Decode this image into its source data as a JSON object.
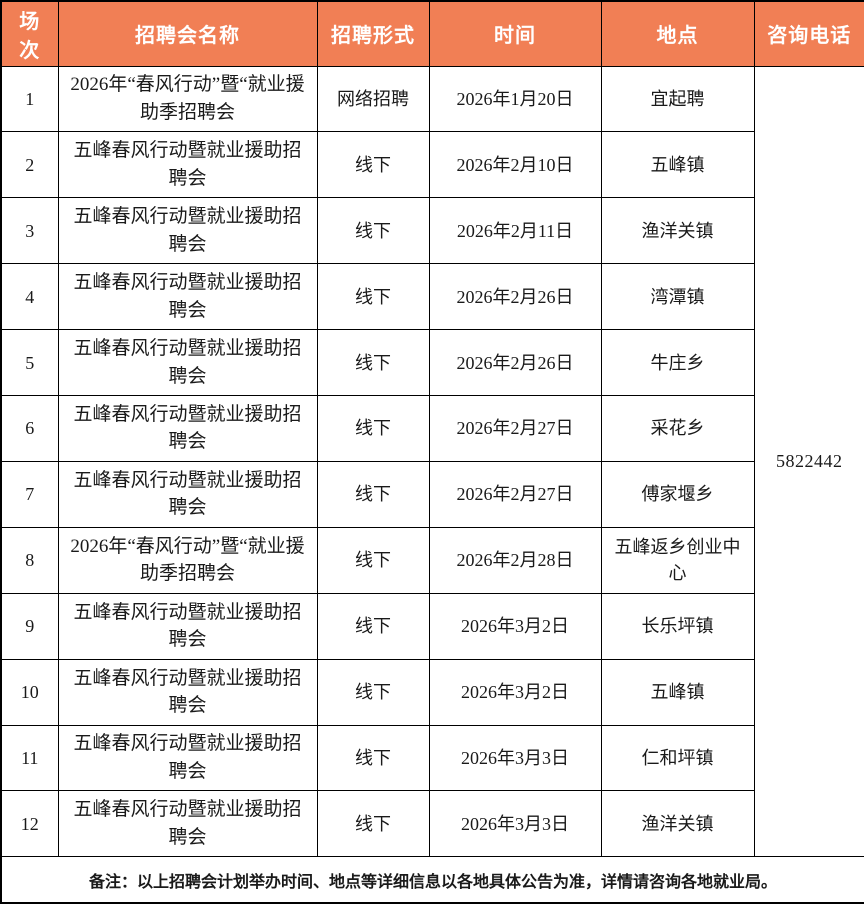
{
  "colors": {
    "accent": "#F17F55",
    "header_text": "#FFFFFF",
    "border": "#000000"
  },
  "table": {
    "headers": [
      "场次",
      "招聘会名称",
      "招聘形式",
      "时间",
      "地点",
      "咨询电话"
    ],
    "phone_number": "5822442",
    "rows": [
      {
        "no": "1",
        "name": "2026年“春风行动”暨“就业援助季招聘会",
        "form": "网络招聘",
        "date": "2026年1月20日",
        "place": "宜起聘"
      },
      {
        "no": "2",
        "name": "五峰春风行动暨就业援助招聘会",
        "form": "线下",
        "date": "2026年2月10日",
        "place": "五峰镇"
      },
      {
        "no": "3",
        "name": "五峰春风行动暨就业援助招聘会",
        "form": "线下",
        "date": "2026年2月11日",
        "place": "渔洋关镇"
      },
      {
        "no": "4",
        "name": "五峰春风行动暨就业援助招聘会",
        "form": "线下",
        "date": "2026年2月26日",
        "place": "湾潭镇"
      },
      {
        "no": "5",
        "name": "五峰春风行动暨就业援助招聘会",
        "form": "线下",
        "date": "2026年2月26日",
        "place": "牛庄乡"
      },
      {
        "no": "6",
        "name": "五峰春风行动暨就业援助招聘会",
        "form": "线下",
        "date": "2026年2月27日",
        "place": "采花乡"
      },
      {
        "no": "7",
        "name": "五峰春风行动暨就业援助招聘会",
        "form": "线下",
        "date": "2026年2月27日",
        "place": "傅家堰乡"
      },
      {
        "no": "8",
        "name": "2026年“春风行动”暨“就业援助季招聘会",
        "form": "线下",
        "date": "2026年2月28日",
        "place": "五峰返乡创业中心"
      },
      {
        "no": "9",
        "name": "五峰春风行动暨就业援助招聘会",
        "form": "线下",
        "date": "2026年3月2日",
        "place": "长乐坪镇"
      },
      {
        "no": "10",
        "name": "五峰春风行动暨就业援助招聘会",
        "form": "线下",
        "date": "2026年3月2日",
        "place": "五峰镇"
      },
      {
        "no": "11",
        "name": "五峰春风行动暨就业援助招聘会",
        "form": "线下",
        "date": "2026年3月3日",
        "place": "仁和坪镇"
      },
      {
        "no": "12",
        "name": "五峰春风行动暨就业援助招聘会",
        "form": "线下",
        "date": "2026年3月3日",
        "place": "渔洋关镇"
      }
    ],
    "note": "备注：以上招聘会计划举办时间、地点等详细信息以各地具体公告为准，详情请咨询各地就业局。"
  }
}
